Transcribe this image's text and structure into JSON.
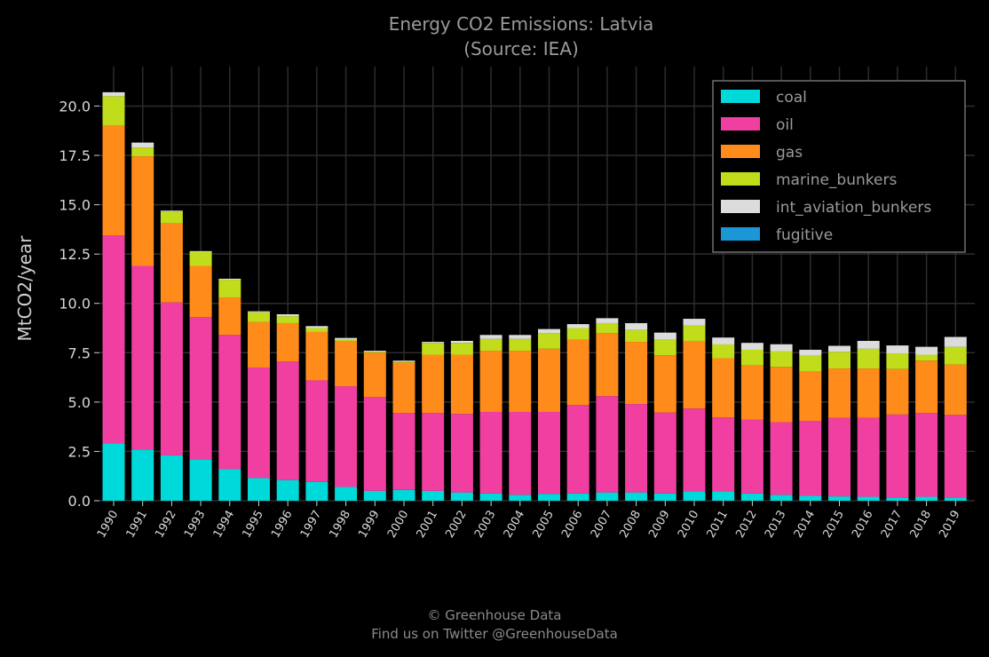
{
  "title_line1": "Energy CO2 Emissions: Latvia",
  "title_line2": "(Source: IEA)",
  "footer_line1": "© Greenhouse Data",
  "footer_line2": "Find us on Twitter @GreenhouseData",
  "chart_data": {
    "type": "bar",
    "stacked": true,
    "title": "Energy CO2 Emissions: Latvia (Source: IEA)",
    "xlabel": "",
    "ylabel": "MtCO2/year",
    "ylim": [
      0,
      22
    ],
    "yticks": [
      "0.0",
      "2.5",
      "5.0",
      "7.5",
      "10.0",
      "12.5",
      "15.0",
      "17.5",
      "20.0"
    ],
    "grid": true,
    "legend_position": "top-right",
    "categories": [
      "1990",
      "1991",
      "1992",
      "1993",
      "1994",
      "1995",
      "1996",
      "1997",
      "1998",
      "1999",
      "2000",
      "2001",
      "2002",
      "2003",
      "2004",
      "2005",
      "2006",
      "2007",
      "2008",
      "2009",
      "2010",
      "2011",
      "2012",
      "2013",
      "2014",
      "2015",
      "2016",
      "2017",
      "2018",
      "2019"
    ],
    "series": [
      {
        "name": "coal",
        "color": "#00d9d9",
        "values": [
          2.9,
          2.6,
          2.3,
          2.1,
          1.6,
          1.15,
          1.05,
          0.95,
          0.7,
          0.5,
          0.55,
          0.5,
          0.42,
          0.37,
          0.3,
          0.35,
          0.37,
          0.42,
          0.42,
          0.37,
          0.47,
          0.47,
          0.37,
          0.3,
          0.25,
          0.22,
          0.2,
          0.17,
          0.2,
          0.17
        ]
      },
      {
        "name": "oil",
        "color": "#f03fa1",
        "values": [
          10.55,
          9.3,
          7.75,
          7.2,
          6.8,
          5.6,
          6.0,
          5.15,
          5.1,
          4.75,
          3.9,
          3.95,
          3.98,
          4.13,
          4.2,
          4.15,
          4.48,
          4.88,
          4.48,
          4.1,
          4.2,
          3.75,
          3.73,
          3.68,
          3.8,
          3.98,
          4.0,
          4.2,
          4.25,
          4.18
        ]
      },
      {
        "name": "gas",
        "color": "#ff8c1a",
        "values": [
          5.55,
          5.55,
          4.0,
          2.6,
          1.9,
          2.3,
          1.95,
          2.45,
          2.3,
          2.25,
          2.55,
          2.95,
          3.0,
          3.1,
          3.1,
          3.2,
          3.3,
          3.2,
          3.15,
          2.9,
          3.4,
          3.0,
          2.75,
          2.8,
          2.5,
          2.5,
          2.5,
          2.3,
          2.65,
          2.55
        ]
      },
      {
        "name": "marine_bunkers",
        "color": "#c0dc1a",
        "values": [
          1.5,
          0.45,
          0.6,
          0.7,
          0.9,
          0.5,
          0.35,
          0.2,
          0.05,
          0.05,
          0.05,
          0.6,
          0.6,
          0.6,
          0.6,
          0.8,
          0.6,
          0.5,
          0.6,
          0.8,
          0.8,
          0.7,
          0.8,
          0.8,
          0.8,
          0.85,
          1.0,
          0.8,
          0.3,
          0.9
        ]
      },
      {
        "name": "int_aviation_bunkers",
        "color": "#dcdcdc",
        "values": [
          0.2,
          0.25,
          0.05,
          0.05,
          0.05,
          0.05,
          0.1,
          0.1,
          0.1,
          0.05,
          0.05,
          0.05,
          0.1,
          0.2,
          0.2,
          0.2,
          0.2,
          0.25,
          0.35,
          0.35,
          0.35,
          0.35,
          0.35,
          0.35,
          0.3,
          0.3,
          0.4,
          0.4,
          0.4,
          0.5
        ]
      },
      {
        "name": "fugitive",
        "color": "#1b96d6",
        "values": [
          0,
          0,
          0,
          0,
          0,
          0,
          0,
          0,
          0,
          0,
          0,
          0,
          0,
          0,
          0,
          0,
          0,
          0,
          0,
          0,
          0,
          0,
          0,
          0,
          0,
          0,
          0,
          0,
          0,
          0
        ]
      }
    ]
  }
}
